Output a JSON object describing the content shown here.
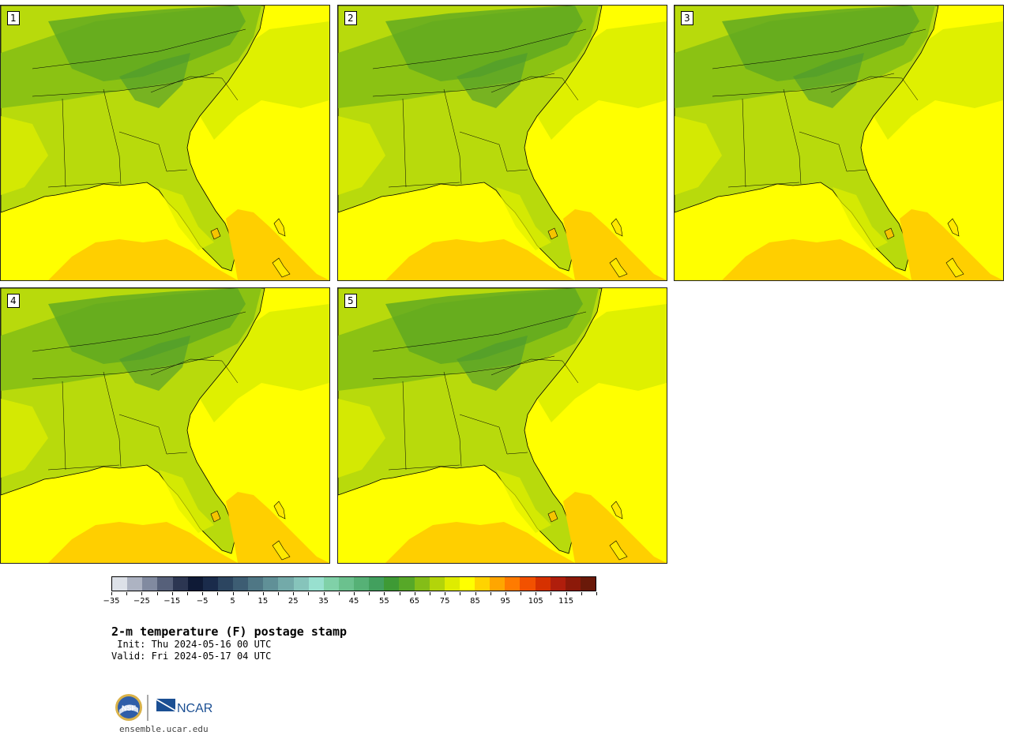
{
  "panels": [
    {
      "label": "1"
    },
    {
      "label": "2"
    },
    {
      "label": "3"
    },
    {
      "label": "4"
    },
    {
      "label": "5"
    }
  ],
  "colorbar": {
    "colors": [
      "#dde1e8",
      "#adb3c2",
      "#818aa0",
      "#56607a",
      "#2c3652",
      "#0f1a36",
      "#1a2b4b",
      "#2c4560",
      "#3d5d73",
      "#4f7785",
      "#609097",
      "#73aaa9",
      "#86c4bb",
      "#98e0cf",
      "#80d1a8",
      "#6bc18e",
      "#56b176",
      "#42a05e",
      "#3e9a35",
      "#57a828",
      "#84bd18",
      "#b3d40a",
      "#dfec00",
      "#ffff00",
      "#ffd300",
      "#ffa600",
      "#ff7b00",
      "#f25100",
      "#d63100",
      "#b01e0c",
      "#8c1909",
      "#6a1909"
    ],
    "tick_labels": [
      "−35",
      "−25",
      "−15",
      "−5",
      "5",
      "15",
      "25",
      "35",
      "45",
      "55",
      "65",
      "75",
      "85",
      "95",
      "105",
      "115"
    ]
  },
  "title": "2-m temperature (F) postage stamp",
  "init": " Init: Thu 2024-05-16 00 UTC",
  "valid": "Valid: Fri 2024-05-17 04 UTC",
  "logo": {
    "left_text": "NSF",
    "right_text": "NCAR"
  },
  "website": "ensemble.ucar.edu"
}
